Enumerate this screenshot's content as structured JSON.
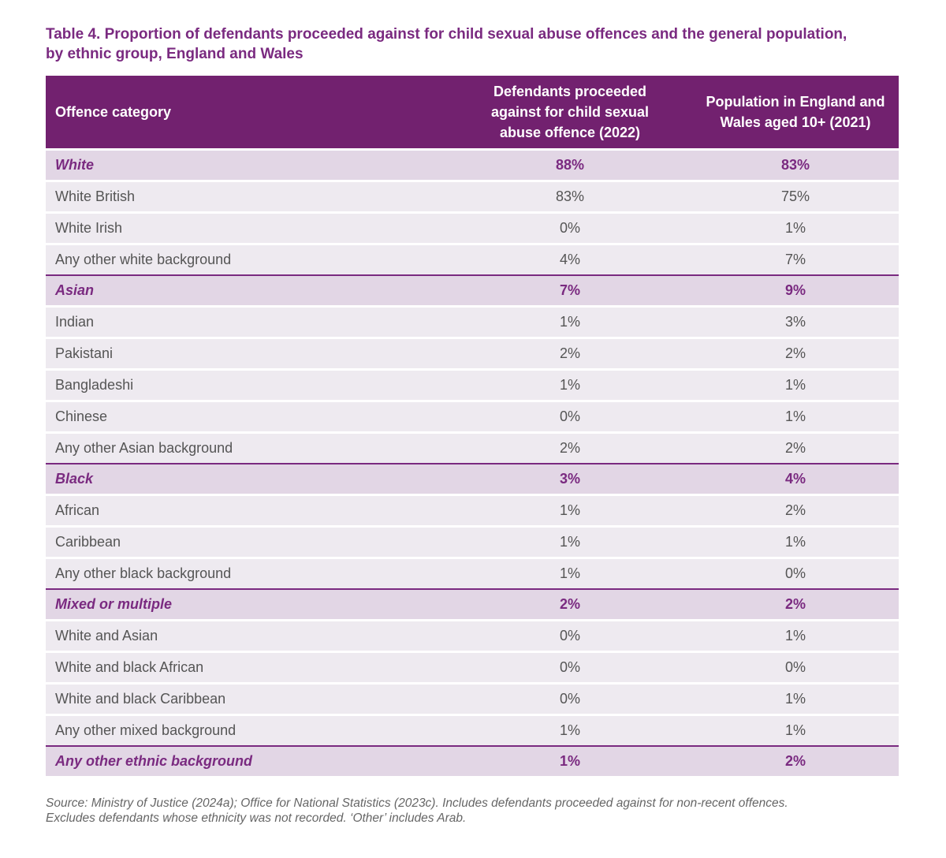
{
  "title": {
    "line1": "Table 4. Proportion of defendants proceeded against for child sexual abuse offences and the general population,",
    "line2": "by ethnic group, England and Wales"
  },
  "table": {
    "headers": {
      "col1": "Offence category",
      "col2": [
        "Defendants proceeded",
        "against for child sexual",
        "abuse offence (2022)"
      ],
      "col3": [
        "Population in England and",
        "Wales aged 10+ (2021)"
      ]
    },
    "rows": [
      {
        "type": "group",
        "label": "White",
        "defendants": "88%",
        "population": "83%"
      },
      {
        "type": "sub",
        "label": "White British",
        "defendants": "83%",
        "population": "75%"
      },
      {
        "type": "sub",
        "label": "White Irish",
        "defendants": "0%",
        "population": "1%"
      },
      {
        "type": "sub",
        "label": "Any other white background",
        "defendants": "4%",
        "population": "7%"
      },
      {
        "type": "group",
        "label": "Asian",
        "defendants": "7%",
        "population": "9%"
      },
      {
        "type": "sub",
        "label": "Indian",
        "defendants": "1%",
        "population": "3%"
      },
      {
        "type": "sub",
        "label": "Pakistani",
        "defendants": "2%",
        "population": "2%"
      },
      {
        "type": "sub",
        "label": "Bangladeshi",
        "defendants": "1%",
        "population": "1%"
      },
      {
        "type": "sub",
        "label": "Chinese",
        "defendants": "0%",
        "population": "1%"
      },
      {
        "type": "sub",
        "label": "Any other Asian background",
        "defendants": "2%",
        "population": "2%"
      },
      {
        "type": "group",
        "label": "Black",
        "defendants": "3%",
        "population": "4%"
      },
      {
        "type": "sub",
        "label": "African",
        "defendants": "1%",
        "population": "2%"
      },
      {
        "type": "sub",
        "label": "Caribbean",
        "defendants": "1%",
        "population": "1%"
      },
      {
        "type": "sub",
        "label": "Any other black background",
        "defendants": "1%",
        "population": "0%"
      },
      {
        "type": "group",
        "label": "Mixed or multiple",
        "defendants": "2%",
        "population": "2%"
      },
      {
        "type": "sub",
        "label": "White and Asian",
        "defendants": "0%",
        "population": "1%"
      },
      {
        "type": "sub",
        "label": "White and black African",
        "defendants": "0%",
        "population": "0%"
      },
      {
        "type": "sub",
        "label": "White and black Caribbean",
        "defendants": "0%",
        "population": "1%"
      },
      {
        "type": "sub",
        "label": "Any other mixed background",
        "defendants": "1%",
        "population": "1%"
      },
      {
        "type": "group",
        "label": "Any other ethnic background",
        "defendants": "1%",
        "population": "2%"
      }
    ]
  },
  "source": {
    "line1": "Source: Ministry of Justice (2024a); Office for National Statistics (2023c). Includes defendants proceeded against for non-recent offences.",
    "line2": "Excludes defendants whose ethnicity was not recorded. ‘Other’ includes Arab."
  },
  "colors": {
    "header_bg": "#72216f",
    "accent_text": "#7a2a80",
    "group_row_bg": "#e2d6e5",
    "sub_row_bg": "#eeeaf0"
  }
}
